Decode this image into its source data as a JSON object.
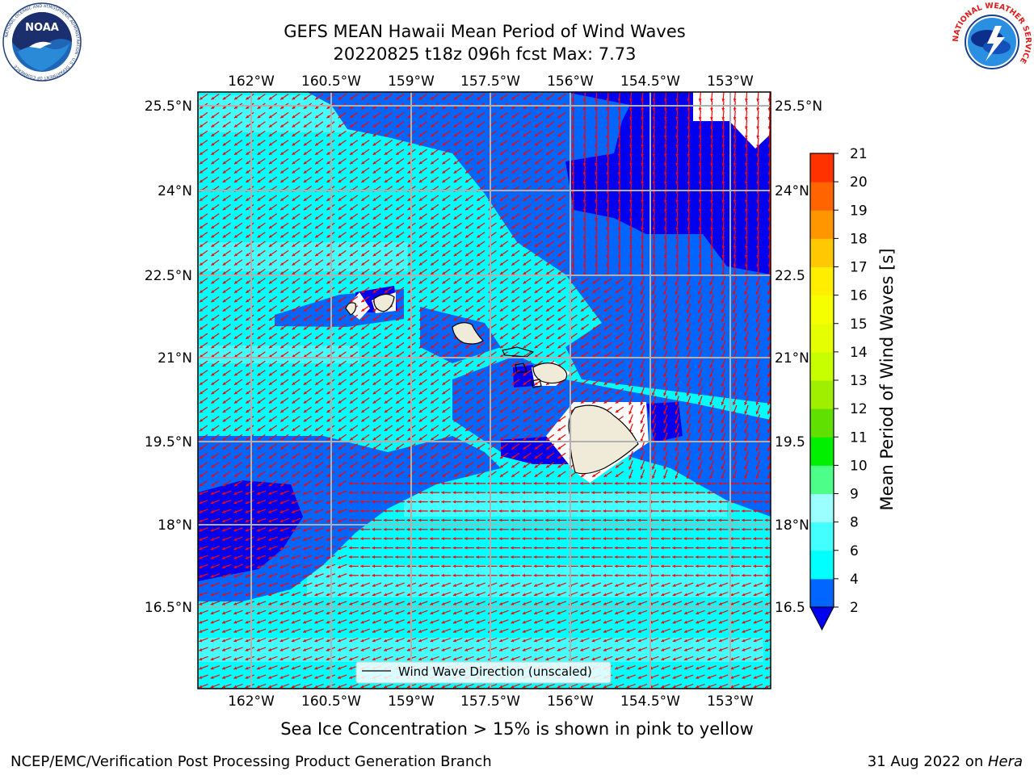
{
  "title": {
    "line1": "GEFS MEAN Hawaii Mean Period of Wind Waves",
    "line2": "20220825 t18z 096h fcst   Max: 7.73"
  },
  "logos": {
    "left": "noaa-logo",
    "left_text": "NOAA",
    "left_ring_text": "NATIONAL OCEANIC AND ATMOSPHERIC ADMINISTRATION · U.S. DEPARTMENT OF COMMERCE",
    "right": "nws-logo",
    "right_ring_text": "NATIONAL WEATHER SERVICE"
  },
  "map": {
    "lon_labels": [
      "162°W",
      "160.5°W",
      "159°W",
      "157.5°W",
      "156°W",
      "154.5°W",
      "153°W"
    ],
    "lat_labels_left": [
      "25.5°N",
      "24°N",
      "22.5°N",
      "21°N",
      "19.5°N",
      "18°N",
      "16.5°N"
    ],
    "lat_labels_right": [
      "25.5°N",
      "24°N",
      "22.5",
      "21°N",
      "19.5",
      "18°N",
      "16.5"
    ],
    "legend_label": "Wind Wave Direction (unscaled)",
    "vector_color": "#ff0000",
    "land_color": "#efebd8",
    "grid_color": "#b0b0b0"
  },
  "colorbar": {
    "label": "Mean Period of Wind Waves [s]",
    "ticks": [
      "2",
      "4",
      "6",
      "8",
      "9",
      "10",
      "11",
      "12",
      "13",
      "14",
      "15",
      "16",
      "17",
      "18",
      "19",
      "20",
      "21"
    ],
    "colors": [
      "#0066ff",
      "#00ffff",
      "#44ffff",
      "#9bffff",
      "#4dff88",
      "#00f000",
      "#60e000",
      "#a0ee00",
      "#c8ff00",
      "#e6ff00",
      "#f5ff00",
      "#ffee00",
      "#ffc800",
      "#ff9600",
      "#ff6400",
      "#ff3200"
    ],
    "extend_low_color": "#0000ee"
  },
  "ice_note": "Sea Ice Concentration > 15% is shown in pink to yellow",
  "footer": {
    "left": "NCEP/EMC/Verification Post Processing Product Generation Branch",
    "date": "31 Aug 2022 on ",
    "host": "Hera"
  }
}
